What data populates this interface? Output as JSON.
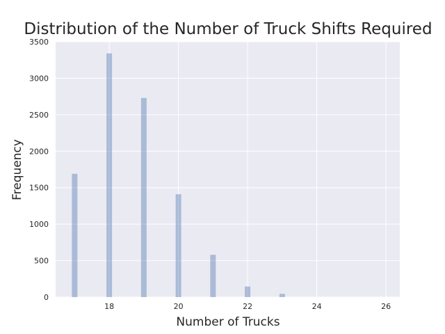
{
  "chart_data": {
    "type": "bar",
    "title": "Distribution of the Number of Truck Shifts Required",
    "xlabel": "Number of Trucks",
    "ylabel": "Frequency",
    "x": [
      17,
      18,
      19,
      20,
      21,
      22,
      23
    ],
    "values": [
      1690,
      3340,
      2730,
      1410,
      580,
      145,
      45
    ],
    "xlim": [
      16.45,
      26.4
    ],
    "ylim": [
      0,
      3500
    ],
    "xticks": [
      "18",
      "20",
      "22",
      "24",
      "26"
    ],
    "yticks": [
      "0",
      "500",
      "1000",
      "1500",
      "2000",
      "2500",
      "3000",
      "3500"
    ],
    "grid": true,
    "colors": {
      "bar": "#4c72b0",
      "background": "#eaeaf2",
      "grid": "#ffffff"
    }
  }
}
